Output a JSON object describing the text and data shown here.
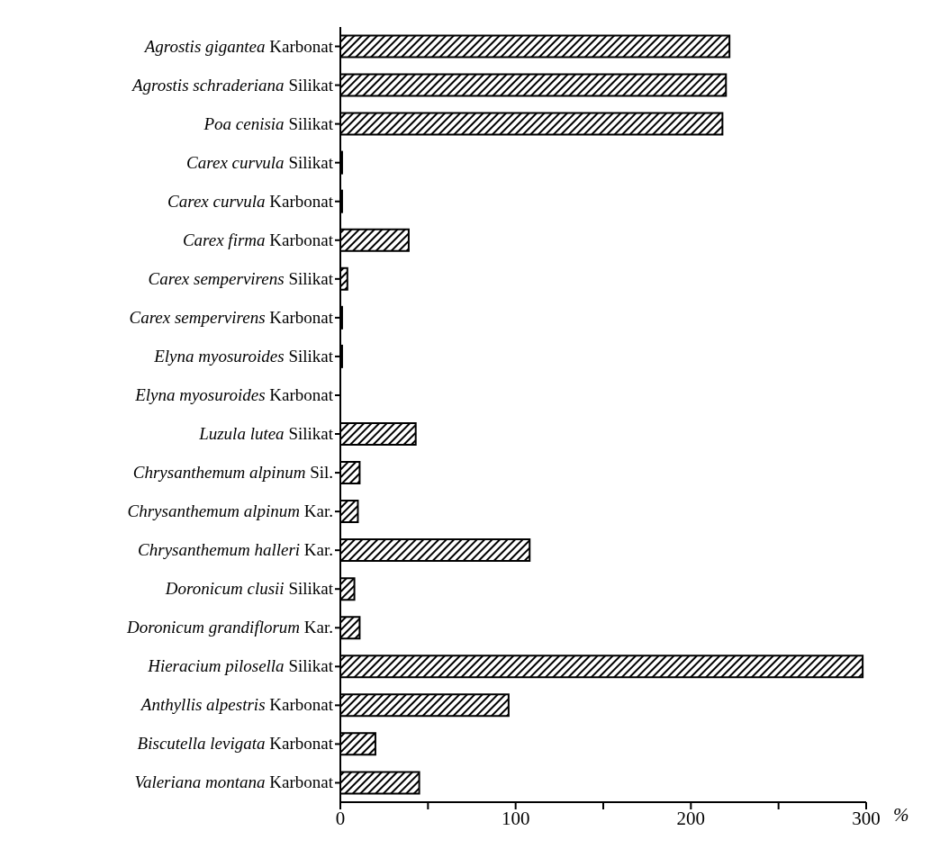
{
  "chart_data": {
    "type": "bar",
    "orientation": "horizontal",
    "xlabel": "%",
    "categories": [
      "Agrostis gigantea Karbonat",
      "Agrostis schraderiana Silikat",
      "Poa cenisia Silikat",
      "Carex curvula Silikat",
      "Carex curvula Karbonat",
      "Carex firma Karbonat",
      "Carex sempervirens Silikat",
      "Carex sempervirens Karbonat",
      "Elyna myosuroides Silikat",
      "Elyna myosuroides Karbonat",
      "Luzula lutea Silikat",
      "Chrysanthemum alpinum Sil.",
      "Chrysanthemum alpinum Kar.",
      "Chrysanthemum halleri Kar.",
      "Doronicum clusii Silikat",
      "Doronicum grandiflorum Kar.",
      "Hieracium pilosella Silikat",
      "Anthyllis alpestris Karbonat",
      "Biscutella levigata Karbonat",
      "Valeriana montana Karbonat"
    ],
    "values": [
      222,
      220,
      218,
      1,
      1,
      39,
      4,
      1,
      1,
      0,
      43,
      11,
      10,
      108,
      8,
      11,
      298,
      96,
      20,
      45
    ],
    "color": "#000000",
    "xlim": [
      0,
      300
    ],
    "xticks": [
      0,
      {
        "value": 50,
        "label": null
      },
      100,
      {
        "value": 150,
        "label": null
      },
      200,
      {
        "value": 250,
        "label": null
      },
      300
    ]
  }
}
